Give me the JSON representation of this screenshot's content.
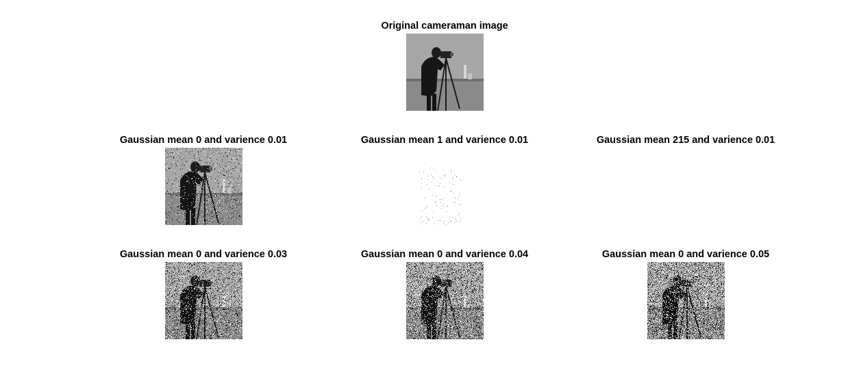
{
  "figure": {
    "panels": [
      {
        "id": "original",
        "title": "Original cameraman image",
        "noise": "none",
        "mean": null,
        "variance": null
      },
      {
        "id": "m0-v001",
        "title": "Gaussian mean 0 and varience 0.01",
        "noise": "gaussian",
        "mean": 0,
        "variance": 0.01
      },
      {
        "id": "m1-v001",
        "title": "Gaussian mean 1 and varience 0.01",
        "noise": "gaussian",
        "mean": 1,
        "variance": 0.01
      },
      {
        "id": "m215-v001",
        "title": "Gaussian mean 215 and varience 0.01",
        "noise": "gaussian",
        "mean": 215,
        "variance": 0.01
      },
      {
        "id": "m0-v003",
        "title": "Gaussian mean 0 and varience 0.03",
        "noise": "gaussian",
        "mean": 0,
        "variance": 0.03
      },
      {
        "id": "m0-v004",
        "title": "Gaussian mean 0 and varience 0.04",
        "noise": "gaussian",
        "mean": 0,
        "variance": 0.04
      },
      {
        "id": "m0-v005",
        "title": "Gaussian mean 0 and varience 0.05",
        "noise": "gaussian",
        "mean": 0,
        "variance": 0.05
      }
    ]
  }
}
